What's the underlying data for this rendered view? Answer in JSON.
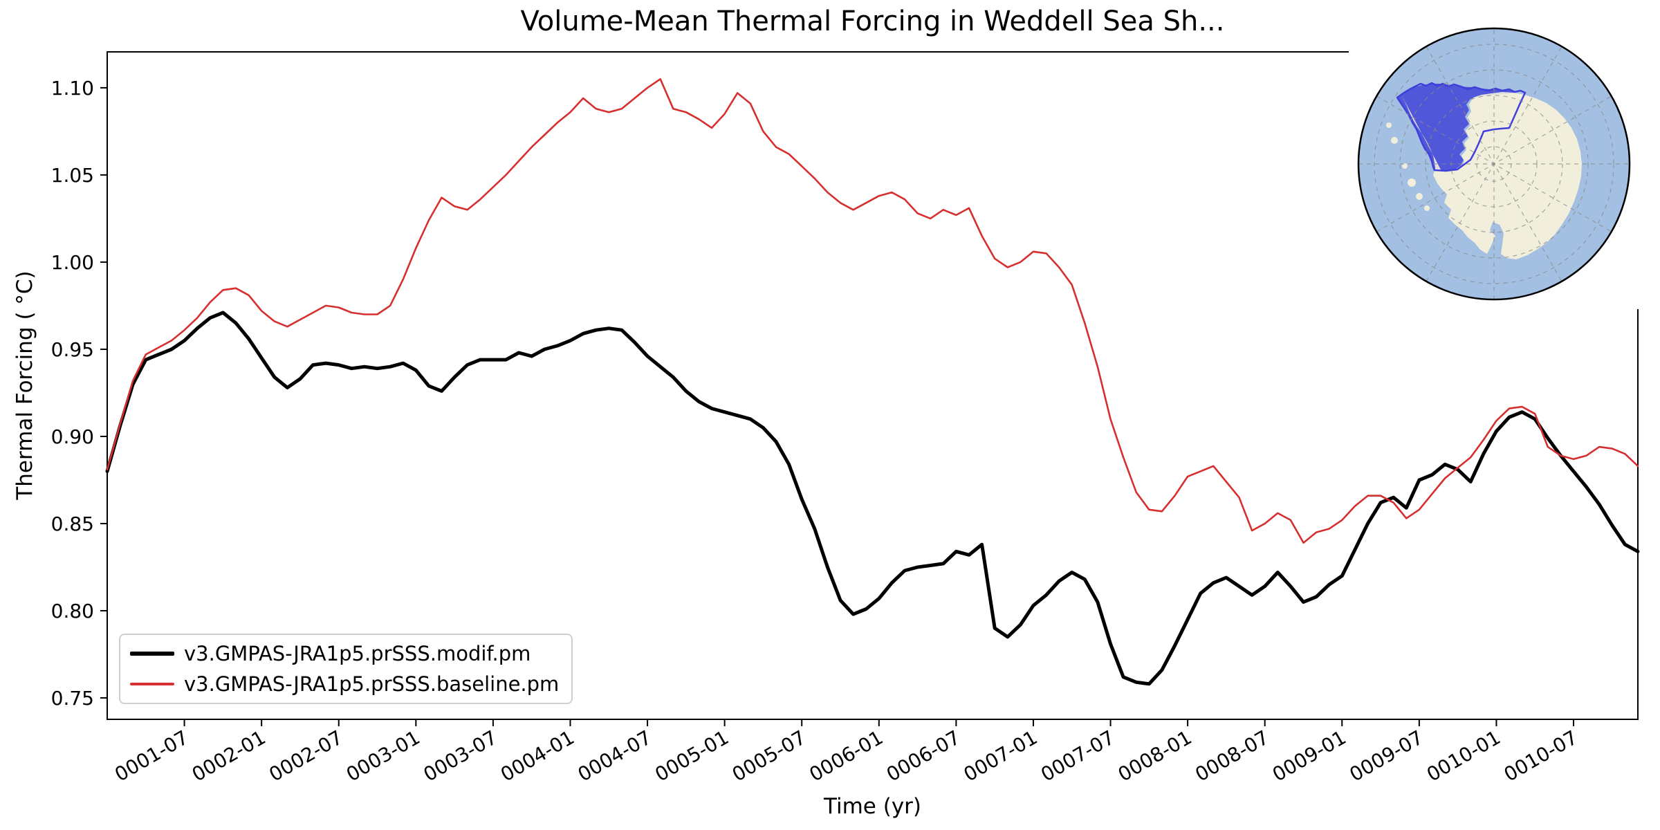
{
  "chart_data": {
    "type": "line",
    "title": "Volume-Mean Thermal Forcing in Weddell Sea Sh...",
    "xlabel": "Time (yr)",
    "ylabel": "Thermal Forcing ( °C)",
    "x_start": "0001-01",
    "x_step_months": 1,
    "n_months": 120,
    "xlim": [
      "0001-01",
      "0010-12"
    ],
    "ylim": [
      0.7377,
      1.1206
    ],
    "grid": false,
    "legend_position": "lower left",
    "y_ticks": [
      "0.75",
      "0.80",
      "0.85",
      "0.90",
      "0.95",
      "1.00",
      "1.05",
      "1.10"
    ],
    "y_tick_values": [
      0.75,
      0.8,
      0.85,
      0.9,
      0.95,
      1.0,
      1.05,
      1.1
    ],
    "x_tick_labels": [
      "0001-07",
      "0002-01",
      "0002-07",
      "0003-01",
      "0003-07",
      "0004-01",
      "0004-07",
      "0005-01",
      "0005-07",
      "0006-01",
      "0006-07",
      "0007-01",
      "0007-07",
      "0008-01",
      "0008-07",
      "0009-01",
      "0009-07",
      "0010-01",
      "0010-07"
    ],
    "x_tick_month_indices": [
      6,
      12,
      18,
      24,
      30,
      36,
      42,
      48,
      54,
      60,
      66,
      72,
      78,
      84,
      90,
      96,
      102,
      108,
      114
    ],
    "series": [
      {
        "name": "v3.GMPAS-JRA1p5.prSSS.modif.pm",
        "color": "#000000",
        "line_width": 5,
        "values": [
          0.88,
          0.906,
          0.93,
          0.944,
          0.947,
          0.95,
          0.955,
          0.962,
          0.968,
          0.971,
          0.965,
          0.956,
          0.945,
          0.934,
          0.928,
          0.933,
          0.941,
          0.942,
          0.941,
          0.939,
          0.94,
          0.939,
          0.94,
          0.942,
          0.938,
          0.929,
          0.926,
          0.934,
          0.941,
          0.944,
          0.944,
          0.944,
          0.948,
          0.946,
          0.95,
          0.952,
          0.955,
          0.959,
          0.961,
          0.962,
          0.961,
          0.954,
          0.946,
          0.94,
          0.934,
          0.926,
          0.92,
          0.916,
          0.914,
          0.912,
          0.91,
          0.905,
          0.897,
          0.884,
          0.864,
          0.847,
          0.825,
          0.806,
          0.798,
          0.801,
          0.807,
          0.816,
          0.823,
          0.825,
          0.826,
          0.827,
          0.834,
          0.832,
          0.838,
          0.79,
          0.785,
          0.792,
          0.803,
          0.809,
          0.817,
          0.822,
          0.818,
          0.805,
          0.781,
          0.762,
          0.759,
          0.758,
          0.766,
          0.78,
          0.795,
          0.81,
          0.816,
          0.819,
          0.814,
          0.809,
          0.814,
          0.822,
          0.814,
          0.805,
          0.808,
          0.815,
          0.82,
          0.835,
          0.85,
          0.862,
          0.865,
          0.859,
          0.875,
          0.878,
          0.884,
          0.881,
          0.874,
          0.89,
          0.903,
          0.911,
          0.914,
          0.91,
          0.899,
          0.889,
          0.88,
          0.871,
          0.861,
          0.849,
          0.838,
          0.834
        ]
      },
      {
        "name": "v3.GMPAS-JRA1p5.prSSS.baseline.pm",
        "color": "#d62f2f",
        "line_width": 2.6,
        "values": [
          0.881,
          0.907,
          0.932,
          0.947,
          0.951,
          0.955,
          0.961,
          0.968,
          0.977,
          0.984,
          0.985,
          0.981,
          0.972,
          0.966,
          0.963,
          0.967,
          0.971,
          0.975,
          0.974,
          0.971,
          0.97,
          0.97,
          0.975,
          0.99,
          1.008,
          1.024,
          1.037,
          1.032,
          1.03,
          1.036,
          1.043,
          1.05,
          1.058,
          1.066,
          1.073,
          1.08,
          1.086,
          1.094,
          1.088,
          1.086,
          1.088,
          1.094,
          1.1,
          1.105,
          1.088,
          1.086,
          1.082,
          1.077,
          1.085,
          1.097,
          1.091,
          1.075,
          1.066,
          1.062,
          1.055,
          1.048,
          1.04,
          1.034,
          1.03,
          1.034,
          1.038,
          1.04,
          1.036,
          1.028,
          1.025,
          1.03,
          1.027,
          1.031,
          1.015,
          1.002,
          0.997,
          1.0,
          1.006,
          1.005,
          0.997,
          0.987,
          0.965,
          0.94,
          0.91,
          0.888,
          0.868,
          0.858,
          0.857,
          0.866,
          0.877,
          0.88,
          0.883,
          0.874,
          0.865,
          0.846,
          0.85,
          0.856,
          0.852,
          0.839,
          0.845,
          0.847,
          0.852,
          0.86,
          0.866,
          0.866,
          0.862,
          0.853,
          0.858,
          0.867,
          0.876,
          0.882,
          0.888,
          0.898,
          0.909,
          0.916,
          0.917,
          0.913,
          0.894,
          0.889,
          0.887,
          0.889,
          0.894,
          0.893,
          0.89,
          0.883
        ]
      }
    ]
  },
  "inset_map": {
    "description": "south-polar-stereographic-antarctica-inset",
    "ocean_color": "#a3bfe1",
    "land_color": "#f1eedb",
    "region_shelf_fill": "#5157d9",
    "region_land_overlay": "#a19ce5",
    "region_border_color": "#3f3fdc",
    "rim_color": "#000000"
  }
}
